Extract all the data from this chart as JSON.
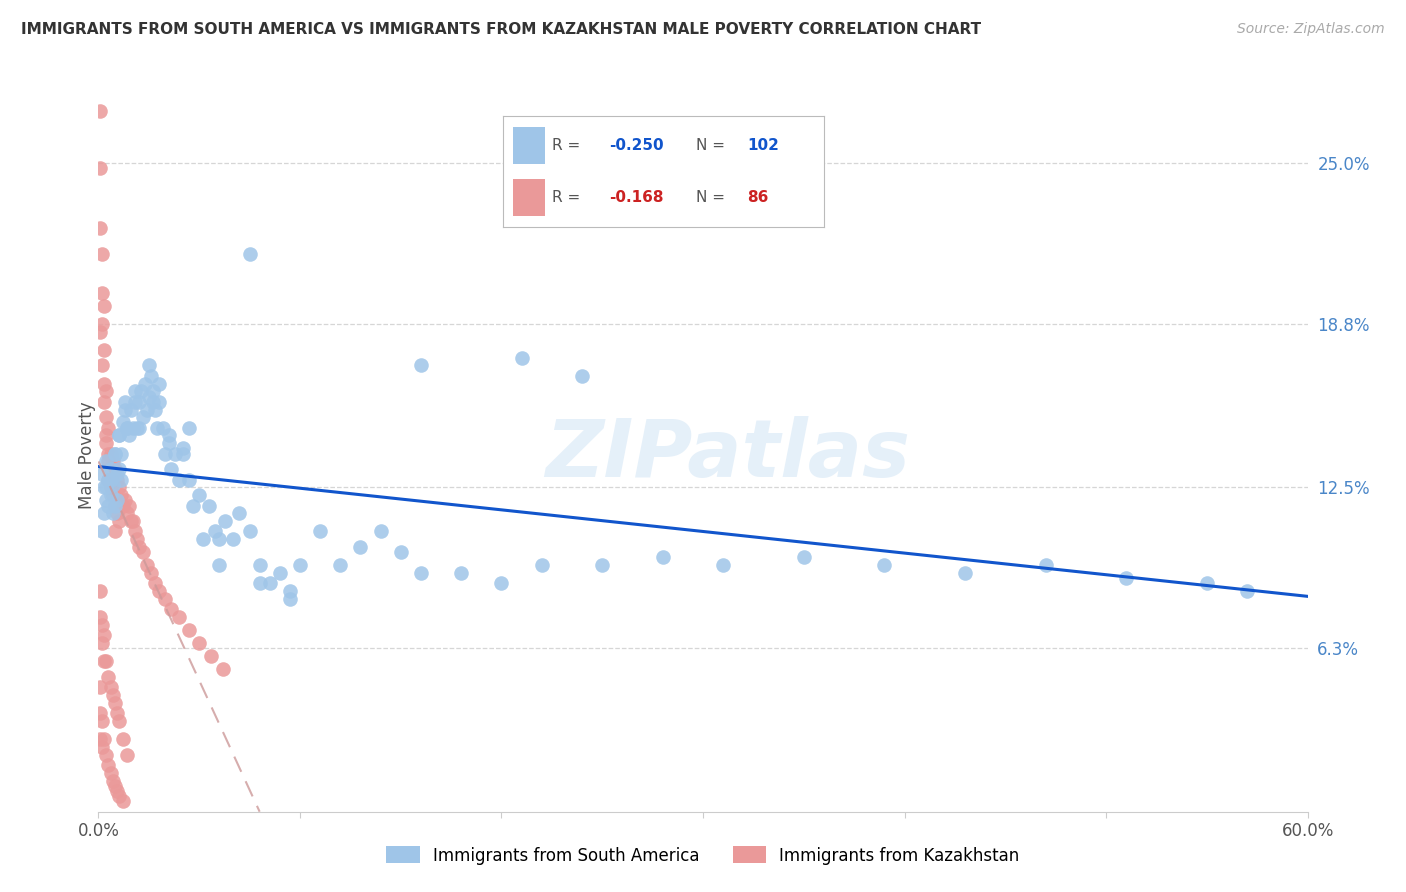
{
  "title": "IMMIGRANTS FROM SOUTH AMERICA VS IMMIGRANTS FROM KAZAKHSTAN MALE POVERTY CORRELATION CHART",
  "source": "Source: ZipAtlas.com",
  "ylabel": "Male Poverty",
  "right_yticks": [
    "25.0%",
    "18.8%",
    "12.5%",
    "6.3%"
  ],
  "right_ytick_vals": [
    0.25,
    0.188,
    0.125,
    0.063
  ],
  "watermark": "ZIPatlas",
  "blue_color": "#9fc5e8",
  "pink_color": "#ea9999",
  "blue_line_color": "#1155cc",
  "pink_line_color": "#cc9999",
  "blue_scatter_x": [
    0.002,
    0.003,
    0.004,
    0.004,
    0.005,
    0.005,
    0.006,
    0.006,
    0.007,
    0.007,
    0.008,
    0.008,
    0.009,
    0.009,
    0.01,
    0.01,
    0.011,
    0.011,
    0.012,
    0.013,
    0.014,
    0.015,
    0.016,
    0.017,
    0.018,
    0.019,
    0.02,
    0.021,
    0.022,
    0.023,
    0.024,
    0.025,
    0.026,
    0.027,
    0.028,
    0.029,
    0.03,
    0.032,
    0.033,
    0.035,
    0.036,
    0.038,
    0.04,
    0.042,
    0.045,
    0.047,
    0.05,
    0.052,
    0.055,
    0.058,
    0.06,
    0.063,
    0.067,
    0.07,
    0.075,
    0.08,
    0.085,
    0.09,
    0.095,
    0.1,
    0.11,
    0.12,
    0.13,
    0.14,
    0.15,
    0.16,
    0.18,
    0.2,
    0.22,
    0.25,
    0.28,
    0.31,
    0.35,
    0.39,
    0.43,
    0.47,
    0.51,
    0.55,
    0.57,
    0.21,
    0.24,
    0.16,
    0.075,
    0.045,
    0.03,
    0.025,
    0.018,
    0.013,
    0.01,
    0.008,
    0.006,
    0.004,
    0.003,
    0.002,
    0.014,
    0.02,
    0.027,
    0.035,
    0.042,
    0.06,
    0.08,
    0.095
  ],
  "blue_scatter_y": [
    0.13,
    0.125,
    0.12,
    0.135,
    0.128,
    0.118,
    0.132,
    0.122,
    0.126,
    0.115,
    0.138,
    0.118,
    0.13,
    0.12,
    0.145,
    0.132,
    0.138,
    0.128,
    0.15,
    0.155,
    0.148,
    0.145,
    0.155,
    0.148,
    0.158,
    0.148,
    0.158,
    0.162,
    0.152,
    0.165,
    0.155,
    0.16,
    0.168,
    0.158,
    0.155,
    0.148,
    0.158,
    0.148,
    0.138,
    0.145,
    0.132,
    0.138,
    0.128,
    0.14,
    0.128,
    0.118,
    0.122,
    0.105,
    0.118,
    0.108,
    0.095,
    0.112,
    0.105,
    0.115,
    0.108,
    0.095,
    0.088,
    0.092,
    0.085,
    0.095,
    0.108,
    0.095,
    0.102,
    0.108,
    0.1,
    0.092,
    0.092,
    0.088,
    0.095,
    0.095,
    0.098,
    0.095,
    0.098,
    0.095,
    0.092,
    0.095,
    0.09,
    0.088,
    0.085,
    0.175,
    0.168,
    0.172,
    0.215,
    0.148,
    0.165,
    0.172,
    0.162,
    0.158,
    0.145,
    0.138,
    0.128,
    0.125,
    0.115,
    0.108,
    0.148,
    0.148,
    0.162,
    0.142,
    0.138,
    0.105,
    0.088,
    0.082
  ],
  "pink_scatter_x": [
    0.001,
    0.001,
    0.001,
    0.002,
    0.002,
    0.002,
    0.003,
    0.003,
    0.003,
    0.004,
    0.004,
    0.004,
    0.005,
    0.005,
    0.005,
    0.006,
    0.006,
    0.007,
    0.007,
    0.008,
    0.008,
    0.009,
    0.009,
    0.01,
    0.01,
    0.011,
    0.012,
    0.013,
    0.014,
    0.015,
    0.016,
    0.017,
    0.018,
    0.019,
    0.02,
    0.022,
    0.024,
    0.026,
    0.028,
    0.03,
    0.033,
    0.036,
    0.04,
    0.045,
    0.05,
    0.056,
    0.062,
    0.001,
    0.001,
    0.002,
    0.002,
    0.003,
    0.003,
    0.004,
    0.005,
    0.006,
    0.007,
    0.008,
    0.009,
    0.01,
    0.012,
    0.014,
    0.001,
    0.001,
    0.001,
    0.002,
    0.002,
    0.003,
    0.004,
    0.005,
    0.006,
    0.007,
    0.008,
    0.009,
    0.01,
    0.012,
    0.001,
    0.002,
    0.003,
    0.004,
    0.005,
    0.006,
    0.008
  ],
  "pink_scatter_y": [
    0.27,
    0.248,
    0.225,
    0.215,
    0.2,
    0.188,
    0.195,
    0.178,
    0.165,
    0.162,
    0.152,
    0.142,
    0.148,
    0.138,
    0.128,
    0.138,
    0.128,
    0.135,
    0.122,
    0.132,
    0.118,
    0.128,
    0.115,
    0.125,
    0.112,
    0.122,
    0.118,
    0.12,
    0.115,
    0.118,
    0.112,
    0.112,
    0.108,
    0.105,
    0.102,
    0.1,
    0.095,
    0.092,
    0.088,
    0.085,
    0.082,
    0.078,
    0.075,
    0.07,
    0.065,
    0.06,
    0.055,
    0.085,
    0.075,
    0.072,
    0.065,
    0.068,
    0.058,
    0.058,
    0.052,
    0.048,
    0.045,
    0.042,
    0.038,
    0.035,
    0.028,
    0.022,
    0.048,
    0.038,
    0.028,
    0.035,
    0.025,
    0.028,
    0.022,
    0.018,
    0.015,
    0.012,
    0.01,
    0.008,
    0.006,
    0.004,
    0.185,
    0.172,
    0.158,
    0.145,
    0.135,
    0.125,
    0.108
  ],
  "blue_trend_x": [
    0.0,
    0.6
  ],
  "blue_trend_y": [
    0.133,
    0.083
  ],
  "pink_trend_x": [
    0.0,
    0.08
  ],
  "pink_trend_y": [
    0.135,
    0.0
  ],
  "xlim": [
    0.0,
    0.6
  ],
  "ylim": [
    0.0,
    0.275
  ],
  "grid_vals": [
    0.063,
    0.125,
    0.188,
    0.25
  ],
  "background_color": "#ffffff",
  "grid_color": "#cccccc"
}
